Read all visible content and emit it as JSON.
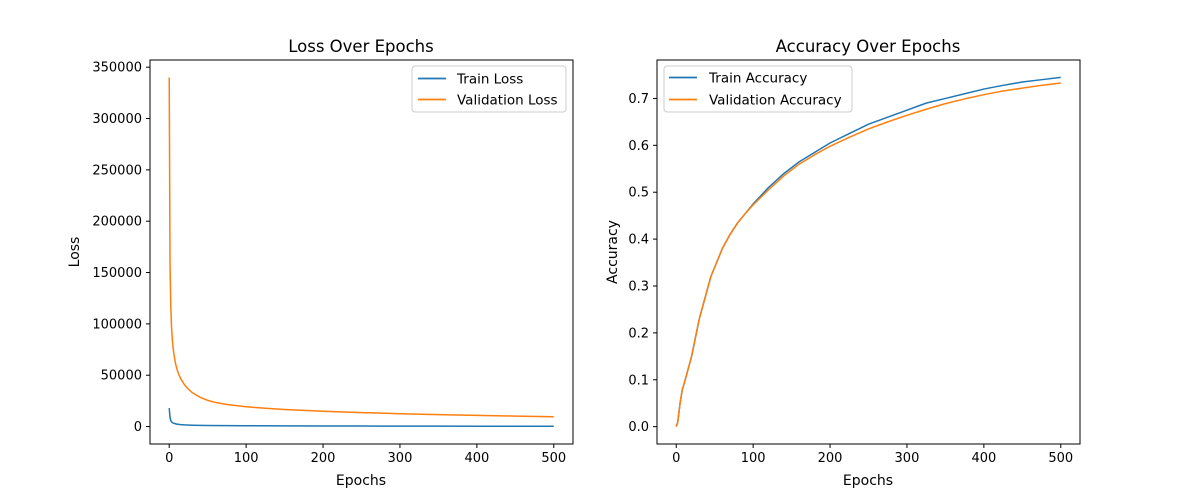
{
  "colors": {
    "train": "#1f77b4",
    "validation": "#ff7f0e"
  },
  "chart_data": [
    {
      "type": "line",
      "title": "Loss Over Epochs",
      "xlabel": "Epochs",
      "ylabel": "Loss",
      "xlim": [
        -25,
        525
      ],
      "ylim": [
        -17000,
        357000
      ],
      "xticks": [
        0,
        100,
        200,
        300,
        400,
        500
      ],
      "yticks": [
        0,
        50000,
        100000,
        150000,
        200000,
        250000,
        300000,
        350000
      ],
      "grid": false,
      "legend_position": "upper right",
      "series": [
        {
          "name": "Train Loss",
          "color": "#1f77b4",
          "x": [
            0,
            1,
            2,
            3,
            5,
            8,
            10,
            15,
            20,
            30,
            40,
            50,
            75,
            100,
            150,
            200,
            250,
            300,
            350,
            400,
            450,
            500
          ],
          "y": [
            18000,
            9000,
            6000,
            4500,
            3400,
            2700,
            2400,
            1900,
            1600,
            1300,
            1100,
            1000,
            850,
            750,
            620,
            550,
            480,
            420,
            370,
            320,
            270,
            230
          ]
        },
        {
          "name": "Validation Loss",
          "color": "#ff7f0e",
          "x": [
            0,
            1,
            2,
            3,
            4,
            5,
            6,
            8,
            10,
            12,
            15,
            20,
            25,
            30,
            40,
            50,
            60,
            75,
            100,
            125,
            150,
            200,
            250,
            300,
            350,
            400,
            450,
            500
          ],
          "y": [
            340000,
            160000,
            118000,
            97000,
            85000,
            77000,
            71000,
            62000,
            56000,
            51500,
            46500,
            40500,
            36300,
            33000,
            28500,
            25500,
            23500,
            21500,
            19300,
            17800,
            16600,
            14900,
            13600,
            12500,
            11600,
            10900,
            10200,
            9600
          ]
        }
      ]
    },
    {
      "type": "line",
      "title": "Accuracy Over Epochs",
      "xlabel": "Epochs",
      "ylabel": "Accuracy",
      "xlim": [
        -25,
        525
      ],
      "ylim": [
        -0.037,
        0.782
      ],
      "xticks": [
        0,
        100,
        200,
        300,
        400,
        500
      ],
      "yticks": [
        0.0,
        0.1,
        0.2,
        0.3,
        0.4,
        0.5,
        0.6,
        0.7
      ],
      "grid": false,
      "legend_position": "upper left",
      "series": [
        {
          "name": "Train Accuracy",
          "color": "#1f77b4",
          "x": [
            0,
            2,
            5,
            8,
            10,
            15,
            20,
            25,
            30,
            35,
            40,
            45,
            50,
            60,
            70,
            80,
            90,
            100,
            120,
            140,
            160,
            180,
            200,
            225,
            250,
            275,
            300,
            325,
            350,
            375,
            400,
            425,
            450,
            475,
            500
          ],
          "y": [
            0.0,
            0.01,
            0.05,
            0.08,
            0.09,
            0.12,
            0.15,
            0.19,
            0.23,
            0.26,
            0.29,
            0.32,
            0.34,
            0.38,
            0.41,
            0.435,
            0.455,
            0.475,
            0.51,
            0.54,
            0.565,
            0.585,
            0.605,
            0.625,
            0.645,
            0.66,
            0.675,
            0.69,
            0.7,
            0.71,
            0.72,
            0.728,
            0.735,
            0.74,
            0.745
          ]
        },
        {
          "name": "Validation Accuracy",
          "color": "#ff7f0e",
          "x": [
            0,
            2,
            5,
            8,
            10,
            15,
            20,
            25,
            30,
            35,
            40,
            45,
            50,
            60,
            70,
            80,
            90,
            100,
            120,
            140,
            160,
            180,
            200,
            225,
            250,
            275,
            300,
            325,
            350,
            375,
            400,
            425,
            450,
            475,
            500
          ],
          "y": [
            0.0,
            0.01,
            0.05,
            0.08,
            0.09,
            0.12,
            0.15,
            0.19,
            0.23,
            0.26,
            0.29,
            0.32,
            0.34,
            0.38,
            0.41,
            0.435,
            0.455,
            0.473,
            0.505,
            0.535,
            0.56,
            0.58,
            0.598,
            0.617,
            0.635,
            0.65,
            0.664,
            0.677,
            0.689,
            0.699,
            0.708,
            0.716,
            0.722,
            0.728,
            0.733
          ]
        }
      ]
    }
  ]
}
